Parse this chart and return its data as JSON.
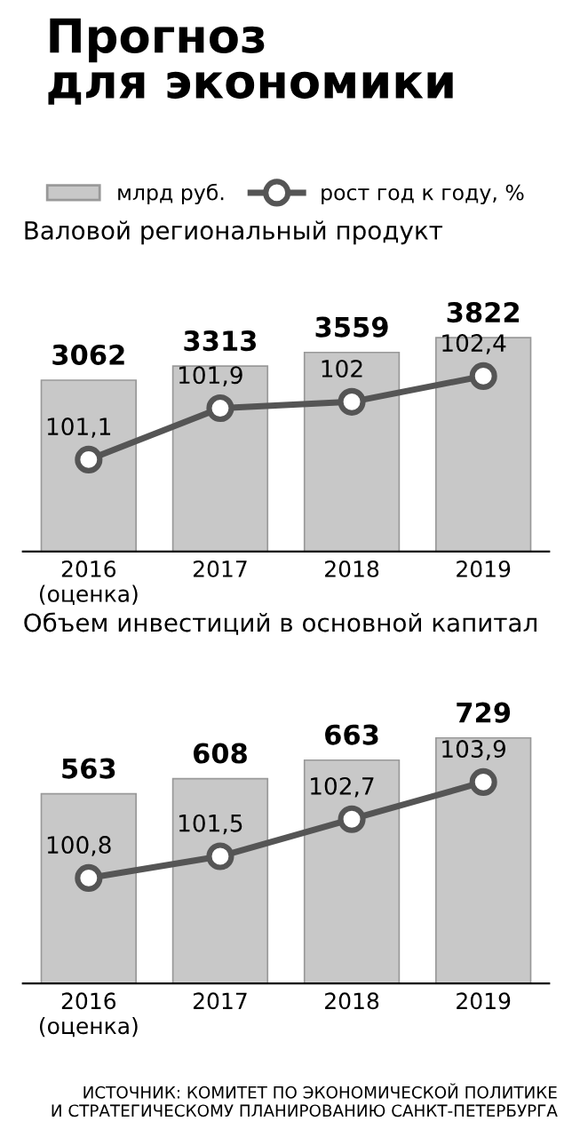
{
  "chart_data": [
    {
      "type": "bar",
      "title": "Прогноз\nдля экономики",
      "subtitle": "Валовой региональный продукт",
      "categories": [
        "2016\n(оценка)",
        "2017",
        "2018",
        "2019"
      ],
      "legend": "top",
      "tick_labels": "x",
      "marker": "circle",
      "series": [
        {
          "name": "млрд руб.",
          "color": "#c8c8c8",
          "values": [
            3062,
            3313,
            3559,
            3822
          ],
          "value_labels": [
            "3062",
            "3313",
            "3559",
            "3822"
          ]
        },
        {
          "name": "рост год к году, %",
          "type": "line",
          "axis": "y2",
          "color": "#555555",
          "values": [
            101.1,
            101.9,
            102,
            102.4
          ],
          "value_labels": [
            "101,1",
            "101,9",
            "102",
            "102,4"
          ]
        }
      ]
    },
    {
      "type": "bar",
      "subtitle": "Объем инвестиций в основной капитал",
      "categories": [
        "2016\n(оценка)",
        "2017",
        "2018",
        "2019"
      ],
      "tick_labels": "x",
      "marker": "circle",
      "annotations": [
        "ИСТОЧНИК: КОМИТЕТ ПО ЭКОНОМИЧЕСКОЙ ПОЛИТИКЕ\nИ СТРАТЕГИЧЕСКОМУ ПЛАНИРОВАНИЮ САНКТ-ПЕТЕРБУРГА"
      ],
      "series": [
        {
          "color": "#c8c8c8",
          "values": [
            563,
            608,
            663,
            729
          ],
          "value_labels": [
            "563",
            "608",
            "663",
            "729"
          ]
        },
        {
          "type": "line",
          "axis": "y2",
          "color": "#555555",
          "values": [
            100.8,
            101.5,
            102.7,
            103.9
          ],
          "value_labels": [
            "100,8",
            "101,5",
            "102,7",
            "103,9"
          ]
        }
      ]
    }
  ]
}
